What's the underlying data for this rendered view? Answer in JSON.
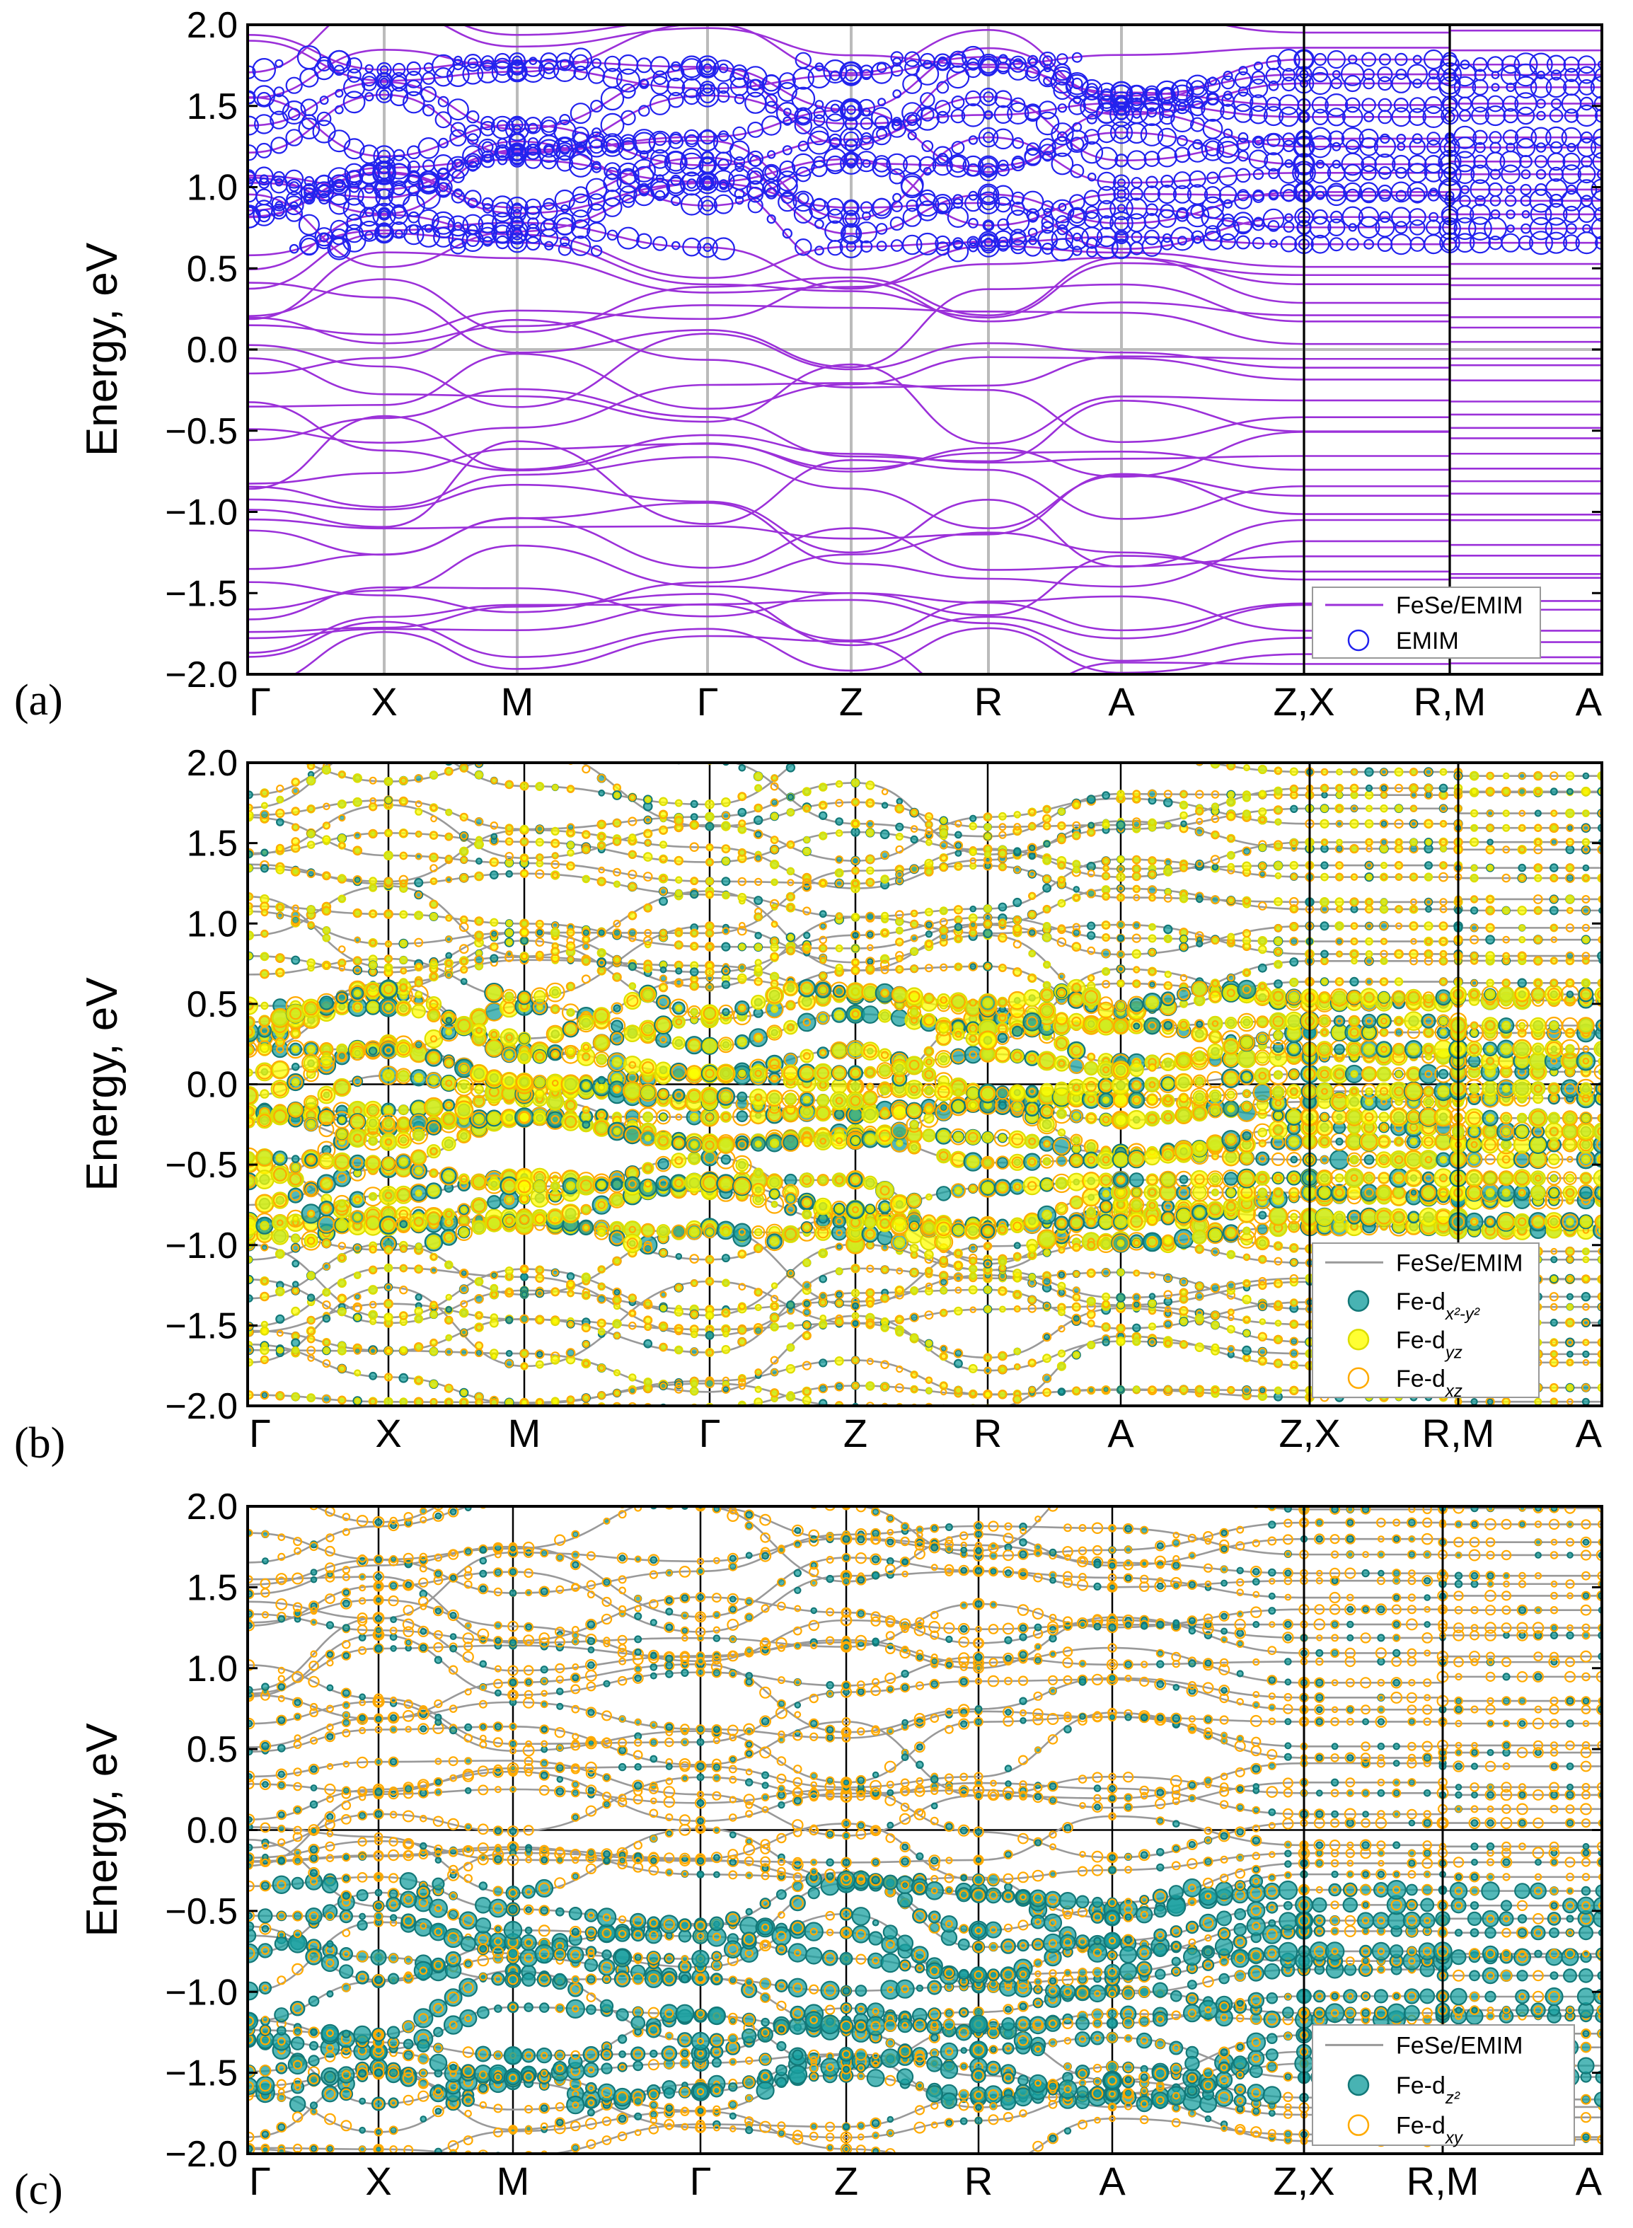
{
  "chart_data": [
    {
      "type": "line",
      "panel_label": "(a)",
      "ylabel": "Energy, eV",
      "ylim": [
        -2.0,
        2.0
      ],
      "yticks": [
        "2.0",
        "1.5",
        "1.0",
        "0.5",
        "0.0",
        "−0.5",
        "−1.0",
        "−1.5",
        "−2.0"
      ],
      "kpoints": [
        "Γ",
        "X",
        "M",
        "Γ",
        "Z",
        "R",
        "A",
        "Z,X",
        "R,M",
        "A"
      ],
      "gridlines": "gray",
      "series": [
        {
          "name": "FeSe/EMIM",
          "style": "line",
          "color": "#9b30d9"
        },
        {
          "name": "EMIM",
          "style": "open-circle",
          "color": "#2222ee"
        }
      ]
    },
    {
      "type": "line",
      "panel_label": "(b)",
      "ylabel": "Energy, eV",
      "ylim": [
        -2.0,
        2.0
      ],
      "yticks": [
        "2.0",
        "1.5",
        "1.0",
        "0.5",
        "0.0",
        "−0.5",
        "−1.0",
        "−1.5",
        "−2.0"
      ],
      "kpoints": [
        "Γ",
        "X",
        "M",
        "Γ",
        "Z",
        "R",
        "A",
        "Z,X",
        "R,M",
        "A"
      ],
      "gridlines": "black",
      "series": [
        {
          "name": "FeSe/EMIM",
          "style": "line",
          "color": "#999999"
        },
        {
          "name": "Fe-d",
          "sub": "x²-y²",
          "style": "filled-circle",
          "color": "#1aa0a0"
        },
        {
          "name": "Fe-d",
          "sub": "yz",
          "style": "filled-circle",
          "color": "#ffff00"
        },
        {
          "name": "Fe-d",
          "sub": "xz",
          "style": "open-circle",
          "color": "#ffaa00"
        }
      ]
    },
    {
      "type": "line",
      "panel_label": "(c)",
      "ylabel": "Energy, eV",
      "ylim": [
        -2.0,
        2.0
      ],
      "yticks": [
        "2.0",
        "1.5",
        "1.0",
        "0.5",
        "0.0",
        "−0.5",
        "−1.0",
        "−1.5",
        "−2.0"
      ],
      "kpoints": [
        "Γ",
        "X",
        "M",
        "Γ",
        "Z",
        "R",
        "A",
        "Z,X",
        "R,M",
        "A"
      ],
      "gridlines": "black",
      "series": [
        {
          "name": "FeSe/EMIM",
          "style": "line",
          "color": "#999999"
        },
        {
          "name": "Fe-d",
          "sub": "z²",
          "style": "filled-circle",
          "color": "#1aa0a0"
        },
        {
          "name": "Fe-d",
          "sub": "xy",
          "style": "open-circle",
          "color": "#ffaa00"
        }
      ]
    }
  ]
}
